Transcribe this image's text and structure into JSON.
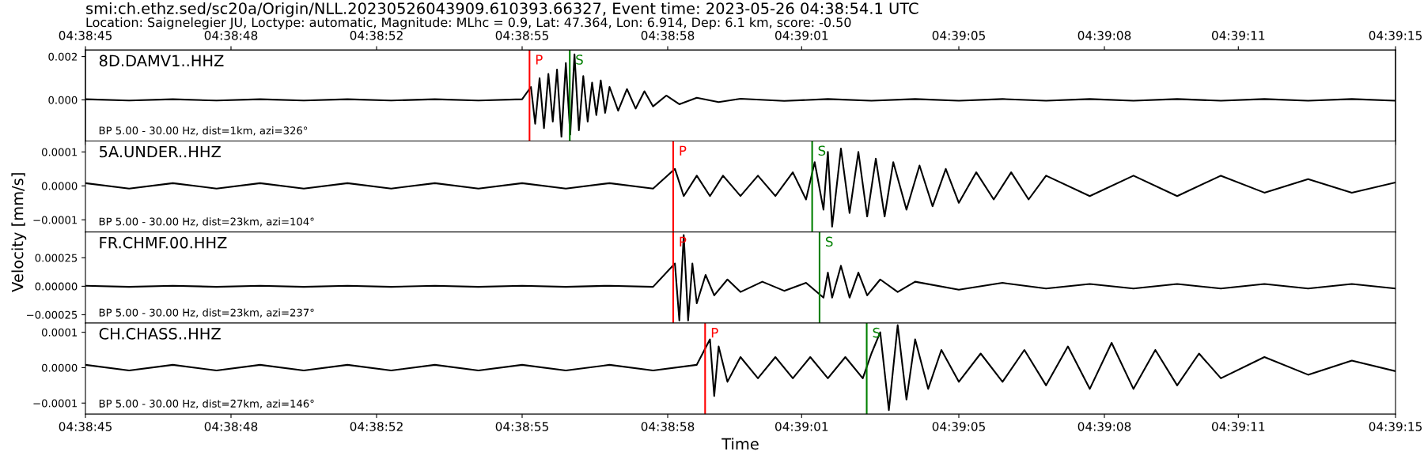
{
  "chart_data": [
    {
      "type": "line",
      "title": "smi:ch.ethz.sed/sc20a/Origin/NLL.20230526043909.610393.66327, Event time: 2023-05-26 04:38:54.1 UTC",
      "subtitle": "Location: Saignelegier JU, Loctype: automatic, Magnitude: MLhc = 0.9, Lat: 47.364, Lon: 6.914, Dep: 6.1 km, score: -0.50",
      "annotations": [
        "8D.DAMV1..HHZ",
        "BP 5.00 - 30.00 Hz, dist=1km, azi=326°"
      ],
      "tick_labels": "y",
      "xlim": [
        4.645833,
        4.654167
      ],
      "ylim": [
        -0.0019,
        0.0023
      ],
      "yticks": [
        {
          "value": 0,
          "label": "0.000"
        },
        {
          "value": 0.002,
          "label": "0.002"
        }
      ],
      "x2lim": [
        4.645833,
        4.654167
      ],
      "x2ticks": [
        {
          "value": 4.645833,
          "label": "04:38:45"
        },
        {
          "value": 4.646759,
          "label": "04:38:48"
        },
        {
          "value": 4.647685,
          "label": "04:38:52"
        },
        {
          "value": 4.648611,
          "label": "04:38:55"
        },
        {
          "value": 4.649537,
          "label": "04:38:58"
        },
        {
          "value": 4.650389,
          "label": "04:39:01"
        },
        {
          "value": 4.651389,
          "label": "04:39:05"
        },
        {
          "value": 4.652315,
          "label": "04:39:08"
        },
        {
          "value": 4.653167,
          "label": "04:39:11"
        },
        {
          "value": 4.654167,
          "label": "04:39:15"
        }
      ],
      "ref_lines": [
        {
          "axis": "x",
          "value": 4.648658,
          "label": "P",
          "color": "#ff0000"
        },
        {
          "axis": "x",
          "value": 4.648914,
          "label": "S",
          "color": "#008000"
        }
      ],
      "series": [
        {
          "color": "#000000",
          "x": [
            4.645833,
            4.646111,
            4.646389,
            4.646667,
            4.646944,
            4.647222,
            4.6475,
            4.647778,
            4.648056,
            4.648333,
            4.648611,
            4.648667,
            4.648694,
            4.648722,
            4.64875,
            4.648778,
            4.648806,
            4.648833,
            4.648861,
            4.648889,
            4.648917,
            4.648944,
            4.648972,
            4.649,
            4.649028,
            4.649056,
            4.649083,
            4.649111,
            4.649139,
            4.649167,
            4.649222,
            4.649278,
            4.649333,
            4.649389,
            4.649444,
            4.649528,
            4.649611,
            4.649722,
            4.649861,
            4.65,
            4.650278,
            4.650556,
            4.650833,
            4.651111,
            4.651389,
            4.651667,
            4.651944,
            4.652222,
            4.6525,
            4.652778,
            4.653056,
            4.653333,
            4.653611,
            4.653889,
            4.654167
          ],
          "values": [
            3e-05,
            -3e-05,
            3e-05,
            -3e-05,
            3e-05,
            -3e-05,
            3e-05,
            -3e-05,
            3e-05,
            -3e-05,
            3e-05,
            0.0006,
            -0.0011,
            0.001,
            -0.0013,
            0.0012,
            -0.001,
            0.0014,
            -0.0017,
            0.0017,
            -0.0016,
            0.0021,
            -0.0014,
            0.0011,
            -0.001,
            0.0008,
            -0.0007,
            0.0009,
            -0.0006,
            0.0006,
            -0.0005,
            0.0005,
            -0.0004,
            0.0004,
            -0.0003,
            0.0002,
            -0.0002,
            0.0001,
            -0.0001,
            5e-05,
            -5e-05,
            4e-05,
            -4e-05,
            4e-05,
            -4e-05,
            4e-05,
            -4e-05,
            4e-05,
            -4e-05,
            4e-05,
            -4e-05,
            4e-05,
            -4e-05,
            4e-05,
            -4e-05
          ]
        }
      ]
    },
    {
      "type": "line",
      "ylabel": "Velocity [mm/s]",
      "annotations": [
        "5A.UNDER..HHZ",
        "BP 5.00 - 30.00 Hz, dist=23km, azi=104°"
      ],
      "tick_labels": "y",
      "xlim": [
        4.645833,
        4.654167
      ],
      "ylim": [
        -0.000136,
        0.000132
      ],
      "yticks": [
        {
          "value": -0.0001,
          "label": "−0.0001"
        },
        {
          "value": 0,
          "label": "0.0000"
        },
        {
          "value": 0.0001,
          "label": "0.0001"
        }
      ],
      "ref_lines": [
        {
          "axis": "x",
          "value": 4.649572,
          "label": "P",
          "color": "#ff0000"
        },
        {
          "axis": "x",
          "value": 4.650456,
          "label": "S",
          "color": "#008000"
        }
      ],
      "series": [
        {
          "color": "#000000",
          "x": [
            4.645833,
            4.646111,
            4.646389,
            4.646667,
            4.646944,
            4.647222,
            4.6475,
            4.647778,
            4.648056,
            4.648333,
            4.648611,
            4.648889,
            4.649167,
            4.649444,
            4.649583,
            4.649639,
            4.649722,
            4.649806,
            4.649889,
            4.65,
            4.650111,
            4.650222,
            4.650333,
            4.650417,
            4.650472,
            4.650528,
            4.650556,
            4.650583,
            4.650639,
            4.650694,
            4.65075,
            4.650806,
            4.650861,
            4.650917,
            4.650972,
            4.651056,
            4.651139,
            4.651222,
            4.651306,
            4.651389,
            4.6515,
            4.651611,
            4.651722,
            4.651833,
            4.651944,
            4.652222,
            4.6525,
            4.652778,
            4.653056,
            4.653333,
            4.653611,
            4.653889,
            4.654167
          ],
          "values": [
            8e-06,
            -8e-06,
            8e-06,
            -8e-06,
            8e-06,
            -8e-06,
            8e-06,
            -8e-06,
            8e-06,
            -8e-06,
            8e-06,
            -8e-06,
            8e-06,
            -8e-06,
            5e-05,
            -3e-05,
            3e-05,
            -3e-05,
            3e-05,
            -3e-05,
            3e-05,
            -3e-05,
            4e-05,
            -4e-05,
            7e-05,
            -7e-05,
            0.0001,
            -0.00012,
            0.00011,
            -8e-05,
            0.0001,
            -9e-05,
            8e-05,
            -9e-05,
            7e-05,
            -7e-05,
            6e-05,
            -6e-05,
            5e-05,
            -5e-05,
            4e-05,
            -4e-05,
            4e-05,
            -4e-05,
            3e-05,
            -3e-05,
            3e-05,
            -3e-05,
            3e-05,
            -2e-05,
            2e-05,
            -2e-05,
            1e-05
          ]
        }
      ]
    },
    {
      "type": "line",
      "annotations": [
        "FR.CHMF.00.HHZ",
        "BP 5.00 - 30.00 Hz, dist=23km, azi=237°"
      ],
      "tick_labels": "y",
      "xlim": [
        4.645833,
        4.654167
      ],
      "ylim": [
        -0.000323,
        0.000476
      ],
      "yticks": [
        {
          "value": -0.00025,
          "label": "−0.00025"
        },
        {
          "value": 0,
          "label": "0.00000"
        },
        {
          "value": 0.00025,
          "label": "0.00025"
        }
      ],
      "ref_lines": [
        {
          "axis": "x",
          "value": 4.649572,
          "label": "P",
          "color": "#ff0000"
        },
        {
          "axis": "x",
          "value": 4.650503,
          "label": "S",
          "color": "#008000"
        }
      ],
      "series": [
        {
          "color": "#000000",
          "x": [
            4.645833,
            4.646111,
            4.646389,
            4.646667,
            4.646944,
            4.647222,
            4.6475,
            4.647778,
            4.648056,
            4.648333,
            4.648611,
            4.648889,
            4.649167,
            4.649444,
            4.649583,
            4.649611,
            4.649639,
            4.649667,
            4.649694,
            4.649722,
            4.649778,
            4.649833,
            4.649917,
            4.65,
            4.650139,
            4.650278,
            4.650417,
            4.650528,
            4.650556,
            4.650583,
            4.650639,
            4.650694,
            4.65075,
            4.650806,
            4.650889,
            4.651,
            4.651111,
            4.651389,
            4.651667,
            4.651944,
            4.652222,
            4.6525,
            4.652778,
            4.653056,
            4.653333,
            4.653611,
            4.653889,
            4.654167
          ],
          "values": [
            5e-06,
            -5e-06,
            5e-06,
            -5e-06,
            5e-06,
            -5e-06,
            5e-06,
            -5e-06,
            5e-06,
            -5e-06,
            5e-06,
            -5e-06,
            5e-06,
            -5e-06,
            0.0002,
            -0.0003,
            0.00045,
            -0.0003,
            0.0002,
            -0.00015,
            0.0001,
            -8e-05,
            6e-05,
            -5e-05,
            4e-05,
            -4e-05,
            3e-05,
            -0.0001,
            0.00012,
            -0.0001,
            0.00018,
            -0.0001,
            0.00012,
            -8e-05,
            6e-05,
            -5e-05,
            4e-05,
            -3e-05,
            3e-05,
            -2e-05,
            2e-05,
            -2e-05,
            2e-05,
            -2e-05,
            2e-05,
            -2e-05,
            2e-05,
            -2e-05
          ]
        }
      ]
    },
    {
      "type": "line",
      "xlabel": "Time",
      "annotations": [
        "CH.CHASS..HHZ",
        "BP 5.00 - 30.00 Hz, dist=27km, azi=146°"
      ],
      "xlim": [
        4.645833,
        4.654167
      ],
      "ylim": [
        -0.000131,
        0.000126
      ],
      "xticks": [
        {
          "value": 4.645833,
          "label": "04:38:45"
        },
        {
          "value": 4.646759,
          "label": "04:38:48"
        },
        {
          "value": 4.647685,
          "label": "04:38:52"
        },
        {
          "value": 4.648611,
          "label": "04:38:55"
        },
        {
          "value": 4.649537,
          "label": "04:38:58"
        },
        {
          "value": 4.650389,
          "label": "04:39:01"
        },
        {
          "value": 4.651389,
          "label": "04:39:05"
        },
        {
          "value": 4.652315,
          "label": "04:39:08"
        },
        {
          "value": 4.653167,
          "label": "04:39:11"
        },
        {
          "value": 4.654167,
          "label": "04:39:15"
        }
      ],
      "yticks": [
        {
          "value": -0.0001,
          "label": "−0.0001"
        },
        {
          "value": 0,
          "label": "0.0000"
        },
        {
          "value": 0.0001,
          "label": "0.0001"
        }
      ],
      "ref_lines": [
        {
          "axis": "x",
          "value": 4.649775,
          "label": "P",
          "color": "#ff0000"
        },
        {
          "axis": "x",
          "value": 4.650803,
          "label": "S",
          "color": "#008000"
        }
      ],
      "series": [
        {
          "color": "#000000",
          "x": [
            4.645833,
            4.646111,
            4.646389,
            4.646667,
            4.646944,
            4.647222,
            4.6475,
            4.647778,
            4.648056,
            4.648333,
            4.648611,
            4.648889,
            4.649167,
            4.649444,
            4.649722,
            4.649806,
            4.649833,
            4.649861,
            4.649917,
            4.65,
            4.650111,
            4.650222,
            4.650333,
            4.650444,
            4.650556,
            4.650667,
            4.650778,
            4.650833,
            4.650889,
            4.650944,
            4.651,
            4.651056,
            4.651111,
            4.651194,
            4.651278,
            4.651389,
            4.651528,
            4.651667,
            4.651806,
            4.651944,
            4.652083,
            4.652222,
            4.652361,
            4.6525,
            4.652639,
            4.652778,
            4.652917,
            4.653056,
            4.653333,
            4.653611,
            4.653889,
            4.654167
          ],
          "values": [
            8e-06,
            -8e-06,
            8e-06,
            -8e-06,
            8e-06,
            -8e-06,
            8e-06,
            -8e-06,
            8e-06,
            -8e-06,
            8e-06,
            -8e-06,
            8e-06,
            -8e-06,
            8e-06,
            8e-05,
            -8e-05,
            6e-05,
            -4e-05,
            3e-05,
            -3e-05,
            3e-05,
            -3e-05,
            3e-05,
            -3e-05,
            3e-05,
            -3e-05,
            4e-05,
            0.0001,
            -0.00012,
            0.00012,
            -9e-05,
            8e-05,
            -6e-05,
            5e-05,
            -4e-05,
            4e-05,
            -4e-05,
            5e-05,
            -5e-05,
            6e-05,
            -6e-05,
            7e-05,
            -6e-05,
            5e-05,
            -5e-05,
            4e-05,
            -3e-05,
            3e-05,
            -2e-05,
            2e-05,
            -1e-05
          ]
        }
      ]
    }
  ]
}
